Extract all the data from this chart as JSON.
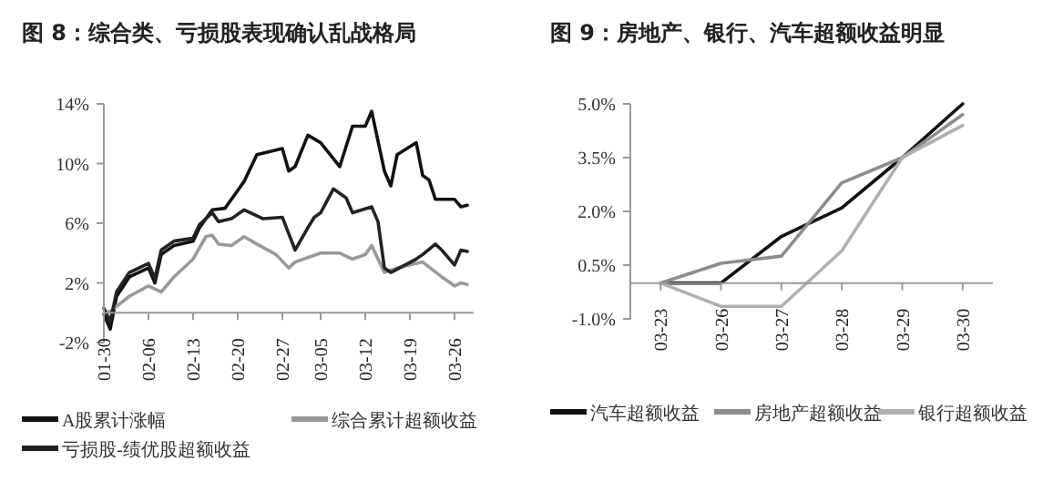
{
  "chart_data": [
    {
      "type": "line",
      "title": "图 8：综合类、亏损股表现确认乱战格局",
      "xlim": [
        "--01-30",
        "--03-29"
      ],
      "xticks": [
        {
          "value": "--01-30",
          "label": "01-30"
        },
        {
          "value": "--02-06",
          "label": "02-06"
        },
        {
          "value": "--02-13",
          "label": "02-13"
        },
        {
          "value": "--02-20",
          "label": "02-20"
        },
        {
          "value": "--02-27",
          "label": "02-27"
        },
        {
          "value": "--03-05",
          "label": "03-05"
        },
        {
          "value": "--03-12",
          "label": "03-12"
        },
        {
          "value": "--03-19",
          "label": "03-19"
        },
        {
          "value": "--03-26",
          "label": "03-26"
        }
      ],
      "ylim": [
        -2,
        14
      ],
      "yticks": [
        {
          "value": -2,
          "label": "-2%"
        },
        {
          "value": 2,
          "label": "2%"
        },
        {
          "value": 6,
          "label": "6%"
        },
        {
          "value": 10,
          "label": "10%"
        },
        {
          "value": 14,
          "label": "14%"
        }
      ],
      "legend": "bottom",
      "line_style": "solid",
      "series": [
        {
          "name": "A股累计涨幅",
          "color": "#111111",
          "x": [
            "--01-30",
            "--01-31",
            "--02-01",
            "--02-03",
            "--02-06",
            "--02-07",
            "--02-08",
            "--02-10",
            "--02-13",
            "--02-14",
            "--02-16",
            "--02-18",
            "--02-21",
            "--02-23",
            "--02-27",
            "--02-28",
            "--03-01",
            "--03-03",
            "--03-05",
            "--03-08",
            "--03-10",
            "--03-12",
            "--03-13",
            "--03-15",
            "--03-16",
            "--03-17",
            "--03-20",
            "--03-21",
            "--03-22",
            "--03-23",
            "--03-26",
            "--03-27",
            "--03-28"
          ],
          "values": [
            -0.1,
            -1.1,
            1.1,
            2.4,
            3.0,
            2.0,
            3.9,
            4.5,
            4.8,
            5.7,
            6.9,
            7.0,
            8.8,
            10.6,
            11.0,
            9.5,
            9.8,
            11.9,
            11.4,
            9.8,
            12.5,
            12.5,
            13.5,
            9.5,
            8.5,
            10.6,
            11.4,
            9.2,
            8.9,
            7.6,
            7.6,
            7.1,
            7.2
          ]
        },
        {
          "name": "综合累计超额收益",
          "color": "#999999",
          "x": [
            "--01-30",
            "--01-31",
            "--02-03",
            "--02-06",
            "--02-08",
            "--02-10",
            "--02-13",
            "--02-15",
            "--02-16",
            "--02-17",
            "--02-19",
            "--02-21",
            "--02-23",
            "--02-26",
            "--02-28",
            "--03-01",
            "--03-05",
            "--03-08",
            "--03-10",
            "--03-12",
            "--03-13",
            "--03-15",
            "--03-17",
            "--03-21",
            "--03-24",
            "--03-26",
            "--03-27",
            "--03-28"
          ],
          "values": [
            -0.1,
            0.1,
            1.1,
            1.8,
            1.4,
            2.4,
            3.6,
            5.1,
            5.2,
            4.6,
            4.5,
            5.1,
            4.6,
            3.9,
            3.0,
            3.4,
            4.0,
            4.0,
            3.6,
            3.9,
            4.5,
            2.7,
            3.0,
            3.4,
            2.4,
            1.8,
            2.0,
            1.9
          ]
        },
        {
          "name": "亏损股-绩优股超额收益",
          "color": "#222222",
          "x": [
            "--01-30",
            "--01-31",
            "--02-01",
            "--02-03",
            "--02-06",
            "--02-07",
            "--02-08",
            "--02-10",
            "--02-13",
            "--02-14",
            "--02-16",
            "--02-17",
            "--02-19",
            "--02-21",
            "--02-24",
            "--02-27",
            "--03-01",
            "--03-03",
            "--03-04",
            "--03-05",
            "--03-07",
            "--03-09",
            "--03-10",
            "--03-13",
            "--03-14",
            "--03-15",
            "--03-16",
            "--03-20",
            "--03-21",
            "--03-23",
            "--03-24",
            "--03-26",
            "--03-27",
            "--03-28"
          ],
          "values": [
            0.3,
            -0.6,
            1.4,
            2.7,
            3.3,
            2.3,
            4.2,
            4.8,
            5.0,
            5.9,
            6.7,
            6.1,
            6.3,
            6.9,
            6.3,
            6.4,
            4.2,
            5.7,
            6.4,
            6.7,
            8.3,
            7.7,
            6.7,
            7.1,
            6.1,
            3.0,
            2.7,
            3.6,
            3.9,
            4.6,
            4.2,
            3.2,
            4.2,
            4.1
          ]
        }
      ]
    },
    {
      "type": "line",
      "title": "图 9：房地产、银行、汽车超额收益明显",
      "categories": [
        "03-23",
        "03-26",
        "03-27",
        "03-28",
        "03-29",
        "03-30"
      ],
      "ylim": [
        -1,
        5
      ],
      "yticks": [
        {
          "value": -1,
          "label": "-1.0%"
        },
        {
          "value": 0.5,
          "label": "0.5%"
        },
        {
          "value": 2,
          "label": "2.0%"
        },
        {
          "value": 3.5,
          "label": "3.5%"
        },
        {
          "value": 5,
          "label": "5.0%"
        }
      ],
      "legend": "bottom",
      "line_style": "solid",
      "series": [
        {
          "name": "汽车超额收益",
          "color": "#111111",
          "values": [
            0,
            0,
            1.3,
            2.1,
            3.5,
            5.0
          ]
        },
        {
          "name": "房地产超额收益",
          "color": "#8c8c8c",
          "values": [
            0,
            0.55,
            0.75,
            2.8,
            3.5,
            4.7
          ]
        },
        {
          "name": "银行超额收益",
          "color": "#b0b0b0",
          "values": [
            0,
            -0.65,
            -0.65,
            0.9,
            3.5,
            4.4
          ]
        }
      ]
    }
  ]
}
